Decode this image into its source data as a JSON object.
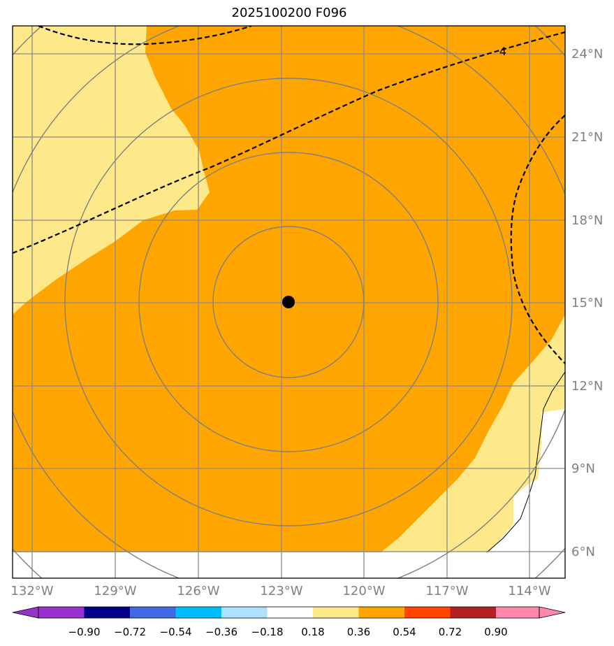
{
  "title": "2025100200 F096",
  "map": {
    "lon_labels": [
      "132°W",
      "129°W",
      "126°W",
      "123°W",
      "120°W",
      "117°W",
      "114°W"
    ],
    "lat_labels": [
      "24°N",
      "21°N",
      "18°N",
      "15°N",
      "12°N",
      "9°N",
      "6°N"
    ],
    "lon_values": [
      -132,
      -129,
      -126,
      -123,
      -120,
      -117,
      -114
    ],
    "lat_values": [
      24,
      21,
      18,
      15,
      12,
      9,
      6
    ],
    "contour_label": "4",
    "center_marker": {
      "lat": 15.0,
      "lon": -122.7
    },
    "colors": {
      "fill_orange": "#ffa500",
      "fill_yellow": "#fde98a",
      "land": "#ffffff",
      "grid": "#8a8a8a",
      "circle": "#808080"
    }
  },
  "colorbar": {
    "ticks": [
      "−0.90",
      "−0.72",
      "−0.54",
      "−0.36",
      "−0.18",
      "0.18",
      "0.36",
      "0.54",
      "0.72",
      "0.90"
    ],
    "colors": [
      "#9932cc",
      "#00008b",
      "#4169e1",
      "#00bfff",
      "#b0e0ff",
      "#ffffff",
      "#fde98a",
      "#ffa500",
      "#ff4500",
      "#b22222",
      "#ff88aa"
    ]
  }
}
